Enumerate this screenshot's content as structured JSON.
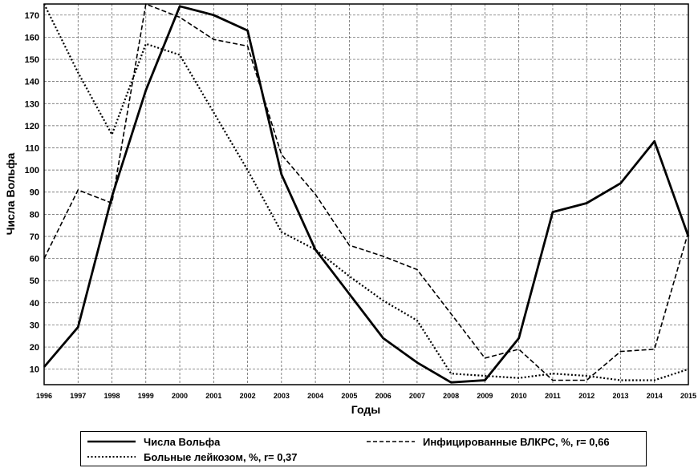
{
  "chart_data": {
    "type": "line",
    "title": "",
    "xlabel": "Годы",
    "ylabel": "Числа Вольфа",
    "ylim": [
      3,
      175
    ],
    "yticks": [
      10,
      20,
      30,
      40,
      50,
      60,
      70,
      80,
      90,
      100,
      110,
      120,
      130,
      140,
      150,
      160,
      170
    ],
    "x": [
      "1996",
      "1997",
      "1998",
      "1999",
      "2000",
      "2001",
      "2002",
      "2003",
      "2004",
      "2005",
      "2006",
      "2007",
      "2008",
      "2009",
      "2010",
      "2011",
      "2012",
      "2013",
      "2014",
      "2015"
    ],
    "grid": true,
    "legend_position": "bottom",
    "series": [
      {
        "name": "Числа Вольфа",
        "style": "solid",
        "values": [
          11,
          29,
          88,
          136,
          174,
          170,
          163,
          98,
          64,
          44,
          24,
          13,
          4,
          5,
          24,
          81,
          85,
          94,
          113,
          70
        ]
      },
      {
        "name": "Инфицированные ВЛКРС, %, r= 0,66",
        "style": "dashed",
        "values": [
          60,
          91,
          85,
          175,
          169,
          159,
          156,
          107,
          89,
          66,
          61,
          55,
          35,
          15,
          19,
          5,
          5,
          18,
          19,
          72
        ]
      },
      {
        "name": "Больные лейкозом, %, r= 0,37",
        "style": "dotted",
        "values": [
          175,
          144,
          116,
          157,
          152,
          126,
          100,
          72,
          64,
          52,
          41,
          32,
          8,
          7,
          6,
          8,
          7,
          5,
          5,
          10
        ]
      }
    ]
  }
}
